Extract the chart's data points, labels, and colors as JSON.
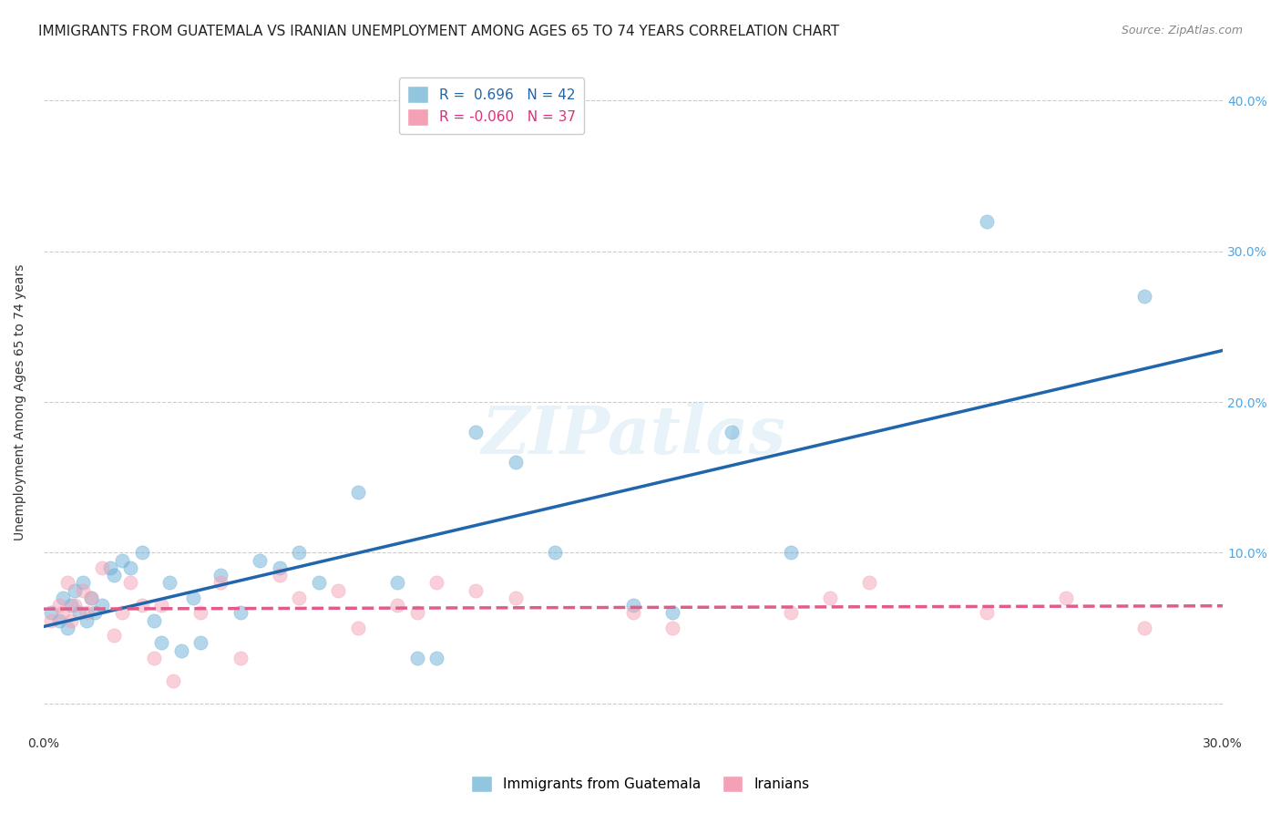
{
  "title": "IMMIGRANTS FROM GUATEMALA VS IRANIAN UNEMPLOYMENT AMONG AGES 65 TO 74 YEARS CORRELATION CHART",
  "source": "Source: ZipAtlas.com",
  "xlabel": "",
  "ylabel": "Unemployment Among Ages 65 to 74 years",
  "xlim": [
    0.0,
    0.3
  ],
  "ylim": [
    -0.02,
    0.42
  ],
  "x_ticks": [
    0.0,
    0.05,
    0.1,
    0.15,
    0.2,
    0.25,
    0.3
  ],
  "x_tick_labels": [
    "0.0%",
    "",
    "",
    "",
    "",
    "",
    ""
  ],
  "y_ticks": [
    0.0,
    0.1,
    0.2,
    0.3,
    0.4
  ],
  "y_tick_labels": [
    "",
    "10.0%",
    "20.0%",
    "30.0%",
    "40.0%"
  ],
  "right_y_ticks": [
    0.0,
    0.1,
    0.2,
    0.3,
    0.4
  ],
  "right_y_tick_labels": [
    "",
    "10.0%",
    "20.0%",
    "30.0%",
    "40.0%"
  ],
  "bottom_x_tick_labels": [
    "0.0%",
    "",
    "",
    "",
    "",
    "",
    "30.0%"
  ],
  "legend_r1": "R =  0.696",
  "legend_n1": "N = 42",
  "legend_r2": "R = -0.060",
  "legend_n2": "N = 37",
  "blue_color": "#6baed6",
  "pink_color": "#f4a0b5",
  "blue_line_color": "#2166ac",
  "pink_line_color": "#e05c8a",
  "legend_blue_color": "#92c5de",
  "legend_pink_color": "#f4a0b5",
  "guatemala_x": [
    0.002,
    0.004,
    0.005,
    0.006,
    0.007,
    0.008,
    0.009,
    0.01,
    0.011,
    0.012,
    0.013,
    0.015,
    0.017,
    0.018,
    0.02,
    0.022,
    0.025,
    0.028,
    0.03,
    0.032,
    0.035,
    0.038,
    0.04,
    0.045,
    0.05,
    0.055,
    0.06,
    0.065,
    0.07,
    0.08,
    0.09,
    0.095,
    0.1,
    0.11,
    0.12,
    0.13,
    0.15,
    0.16,
    0.175,
    0.19,
    0.24,
    0.28
  ],
  "guatemala_y": [
    0.06,
    0.055,
    0.07,
    0.05,
    0.065,
    0.075,
    0.06,
    0.08,
    0.055,
    0.07,
    0.06,
    0.065,
    0.09,
    0.085,
    0.095,
    0.09,
    0.1,
    0.055,
    0.04,
    0.08,
    0.035,
    0.07,
    0.04,
    0.085,
    0.06,
    0.095,
    0.09,
    0.1,
    0.08,
    0.14,
    0.08,
    0.03,
    0.03,
    0.18,
    0.16,
    0.1,
    0.065,
    0.06,
    0.18,
    0.1,
    0.32,
    0.27
  ],
  "iranian_x": [
    0.002,
    0.004,
    0.005,
    0.006,
    0.007,
    0.008,
    0.01,
    0.011,
    0.012,
    0.015,
    0.018,
    0.02,
    0.022,
    0.025,
    0.028,
    0.03,
    0.033,
    0.04,
    0.045,
    0.05,
    0.06,
    0.065,
    0.075,
    0.08,
    0.09,
    0.095,
    0.1,
    0.11,
    0.12,
    0.15,
    0.16,
    0.19,
    0.2,
    0.21,
    0.24,
    0.26,
    0.28
  ],
  "iranian_y": [
    0.055,
    0.065,
    0.06,
    0.08,
    0.055,
    0.065,
    0.075,
    0.06,
    0.07,
    0.09,
    0.045,
    0.06,
    0.08,
    0.065,
    0.03,
    0.065,
    0.015,
    0.06,
    0.08,
    0.03,
    0.085,
    0.07,
    0.075,
    0.05,
    0.065,
    0.06,
    0.08,
    0.075,
    0.07,
    0.06,
    0.05,
    0.06,
    0.07,
    0.08,
    0.06,
    0.07,
    0.05
  ],
  "watermark": "ZIPatlas",
  "background_color": "#ffffff",
  "grid_color": "#cccccc",
  "title_fontsize": 11,
  "axis_label_fontsize": 10,
  "tick_fontsize": 10,
  "legend_fontsize": 11,
  "scatter_size": 120,
  "scatter_alpha": 0.5,
  "line_width": 2.5
}
